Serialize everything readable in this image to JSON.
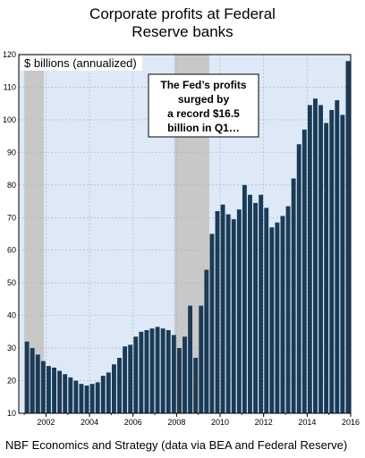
{
  "title_lines": [
    "Corporate profits at Federal",
    "Reserve banks"
  ],
  "source": "NBF Economics and Strategy (data via BEA and Federal Reserve)",
  "colors": {
    "plot_background": "#dde9f7",
    "recession_shading": "#c8c8c8",
    "bars": "#1a3b57",
    "grid": "#b0b0b0"
  },
  "chart_data": {
    "type": "bar",
    "title": "Corporate profits at Federal Reserve banks",
    "unit_label": "$ billions (annualized)",
    "x_tick_labels": [
      "2002",
      "2004",
      "2006",
      "2008",
      "2010",
      "2012",
      "2014",
      "2016"
    ],
    "xlim": [
      2000.75,
      2016.0
    ],
    "ylim": [
      10,
      120
    ],
    "y_ticks": [
      10,
      20,
      30,
      40,
      50,
      60,
      70,
      80,
      90,
      100,
      110,
      120
    ],
    "grid": true,
    "recessions": [
      [
        2001.0,
        2001.9
      ],
      [
        2007.9,
        2009.5
      ]
    ],
    "annotation": "The Fed's profits surged by a record $16.5 billion in Q1...",
    "x": [
      "2001Q1",
      "2001Q2",
      "2001Q3",
      "2001Q4",
      "2002Q1",
      "2002Q2",
      "2002Q3",
      "2002Q4",
      "2003Q1",
      "2003Q2",
      "2003Q3",
      "2003Q4",
      "2004Q1",
      "2004Q2",
      "2004Q3",
      "2004Q4",
      "2005Q1",
      "2005Q2",
      "2005Q3",
      "2005Q4",
      "2006Q1",
      "2006Q2",
      "2006Q3",
      "2006Q4",
      "2007Q1",
      "2007Q2",
      "2007Q3",
      "2007Q4",
      "2008Q1",
      "2008Q2",
      "2008Q3",
      "2008Q4",
      "2009Q1",
      "2009Q2",
      "2009Q3",
      "2009Q4",
      "2010Q1",
      "2010Q2",
      "2010Q3",
      "2010Q4",
      "2011Q1",
      "2011Q2",
      "2011Q3",
      "2011Q4",
      "2012Q1",
      "2012Q2",
      "2012Q3",
      "2012Q4",
      "2013Q1",
      "2013Q2",
      "2013Q3",
      "2013Q4",
      "2014Q1",
      "2014Q2",
      "2014Q3",
      "2014Q4",
      "2015Q1",
      "2015Q2",
      "2015Q3",
      "2015Q4"
    ],
    "values": [
      32,
      30,
      28,
      26,
      24.5,
      24,
      23,
      22,
      21,
      20,
      19,
      18.5,
      19,
      19.5,
      21.5,
      22.5,
      25,
      27,
      30.5,
      31,
      33.5,
      35,
      35.5,
      36,
      36.5,
      36,
      35.5,
      34,
      30,
      33.5,
      43,
      27,
      43,
      54,
      65,
      72,
      74,
      71,
      69.5,
      72.5,
      80,
      77,
      74.5,
      77,
      73,
      67,
      68.5,
      70.5,
      73.5,
      82,
      92.5,
      97,
      104.5,
      106.5,
      104.5,
      99,
      103,
      106,
      101.5,
      118
    ]
  }
}
